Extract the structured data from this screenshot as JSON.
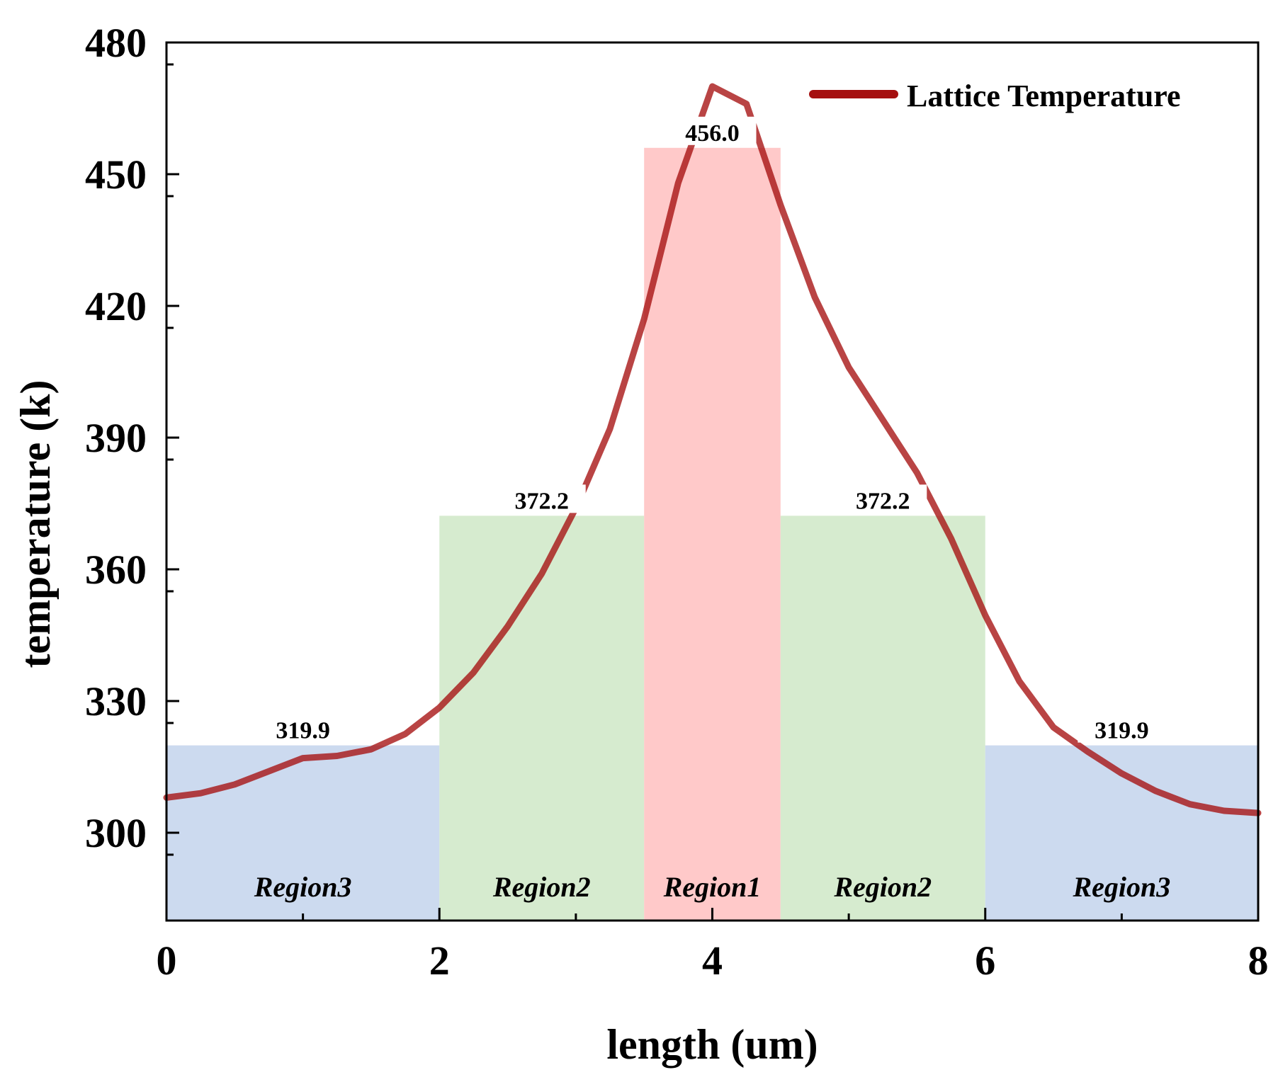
{
  "chart_data": {
    "type": "line",
    "xlabel": "length (um)",
    "ylabel": "temperature (k)",
    "xlim": [
      0,
      8
    ],
    "ylim": [
      280,
      480
    ],
    "xticks": [
      0,
      2,
      4,
      6,
      8
    ],
    "yticks": [
      300,
      330,
      360,
      390,
      420,
      450,
      480
    ],
    "legend": {
      "label": "Lattice Temperature",
      "placement": "top-right"
    },
    "colors": {
      "line": "#a50f0f",
      "region1": "#ffc0c0",
      "region2": "#cfe7c7",
      "region3": "#c3d3ec"
    },
    "series": [
      {
        "name": "Lattice Temperature",
        "x": [
          0,
          0.25,
          0.5,
          0.75,
          1.0,
          1.25,
          1.5,
          1.75,
          2.0,
          2.25,
          2.5,
          2.75,
          3.0,
          3.25,
          3.5,
          3.75,
          4.0,
          4.25,
          4.5,
          4.75,
          5.0,
          5.25,
          5.5,
          5.75,
          6.0,
          6.25,
          6.5,
          6.75,
          7.0,
          7.25,
          7.5,
          7.75,
          8.0
        ],
        "values": [
          308,
          309,
          311,
          314,
          317,
          317.5,
          319,
          322.5,
          328.5,
          336.5,
          347,
          359,
          374,
          392,
          417,
          448,
          470,
          466,
          443,
          422,
          406,
          394,
          382,
          367,
          349.5,
          334.5,
          324,
          318.5,
          313.5,
          309.5,
          306.5,
          305,
          304.5
        ]
      }
    ],
    "regions": [
      {
        "label": "Region3",
        "x_start": 0,
        "x_end": 2,
        "level": 319.9,
        "value_label": "319.9",
        "fill": "region3"
      },
      {
        "label": "Region2",
        "x_start": 2,
        "x_end": 3.5,
        "level": 372.2,
        "value_label": "372.2",
        "fill": "region2"
      },
      {
        "label": "Region1",
        "x_start": 3.5,
        "x_end": 4.5,
        "level": 456.0,
        "value_label": "456.0",
        "fill": "region1"
      },
      {
        "label": "Region2",
        "x_start": 4.5,
        "x_end": 6,
        "level": 372.2,
        "value_label": "372.2",
        "fill": "region2"
      },
      {
        "label": "Region3",
        "x_start": 6,
        "x_end": 8,
        "level": 319.9,
        "value_label": "319.9",
        "fill": "region3"
      }
    ]
  }
}
